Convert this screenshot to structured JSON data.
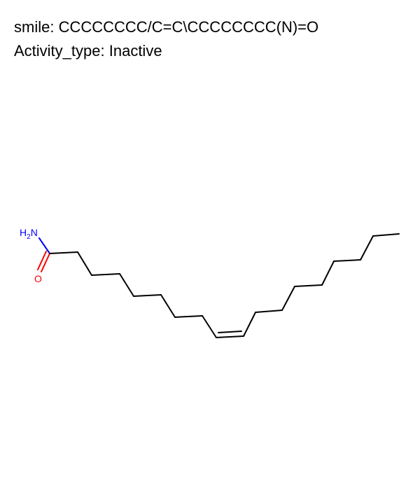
{
  "caption": {
    "smiles_key": "smile",
    "smiles_value": "CCCCCCCC/C=C\\CCCCCCCC(N)=O",
    "activity_key": "Activity_type",
    "activity_value": "Inactive"
  },
  "molecule": {
    "atoms": {
      "nitrogen": {
        "symbol": "N",
        "hydrogen": "H",
        "h_count": "2",
        "color": "#0000ff"
      },
      "oxygen": {
        "symbol": "O",
        "color": "#ff0000"
      }
    },
    "colors": {
      "bond": "#000000",
      "nitrogen": "#0000ff",
      "oxygen": "#ff0000"
    }
  }
}
